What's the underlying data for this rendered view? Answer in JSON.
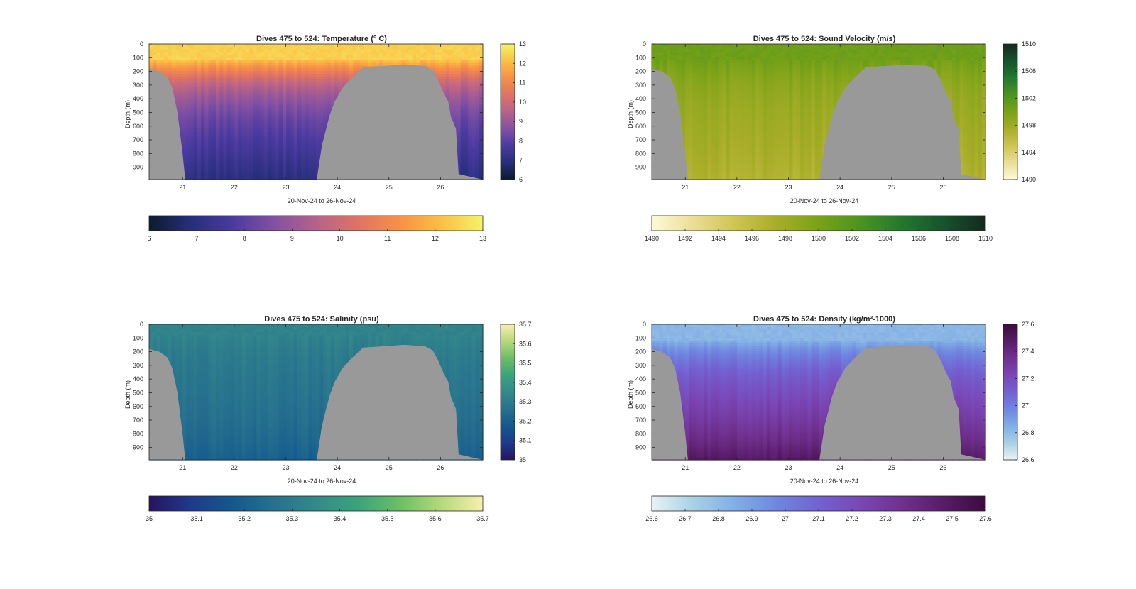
{
  "figure": {
    "shared_xlabel": "20-Nov-24 to 26-Nov-24",
    "shared_ylabel": "Depth (m)",
    "x_ticks": [
      "21",
      "22",
      "23",
      "24",
      "25",
      "26"
    ],
    "depth_ticks": [
      "0",
      "100",
      "200",
      "300",
      "400",
      "500",
      "600",
      "700",
      "800",
      "900"
    ]
  },
  "chart_data": [
    {
      "id": "temperature",
      "type": "heatmap",
      "title": "Dives 475 to 524: Temperature (° C)",
      "xlabel": "20-Nov-24 to 26-Nov-24",
      "ylabel": "Depth (m)",
      "xlim": [
        20.35,
        26.82
      ],
      "ylim": [
        0,
        990
      ],
      "x_ticks": [
        21,
        22,
        23,
        24,
        25,
        26
      ],
      "y_ticks": [
        0,
        100,
        200,
        300,
        400,
        500,
        600,
        700,
        800,
        900
      ],
      "colormap": [
        "#0c1b2e",
        "#262f7a",
        "#4a3aa0",
        "#8251a3",
        "#b5628a",
        "#de7366",
        "#f79047",
        "#fbbf45",
        "#f4f36a"
      ],
      "clim": [
        6,
        13
      ],
      "colorbar_ticks": [
        6,
        7,
        8,
        9,
        10,
        11,
        12,
        13
      ],
      "surface_value": 12.4,
      "mix_depth": 110,
      "deep_value": 7.7,
      "bottom_value": 6.9
    },
    {
      "id": "sound_velocity",
      "type": "heatmap",
      "title": "Dives 475 to 524: Sound Velocity (m/s)",
      "xlabel": "20-Nov-24 to 26-Nov-24",
      "ylabel": "Depth (m)",
      "xlim": [
        20.35,
        26.82
      ],
      "ylim": [
        0,
        990
      ],
      "x_ticks": [
        21,
        22,
        23,
        24,
        25,
        26
      ],
      "y_ticks": [
        0,
        100,
        200,
        300,
        400,
        500,
        600,
        700,
        800,
        900
      ],
      "colormap": [
        "#fdfbd8",
        "#ebdd95",
        "#cfc452",
        "#a8ad28",
        "#79a218",
        "#4b9420",
        "#23782e",
        "#17532d",
        "#132a1d"
      ],
      "clim": [
        1490,
        1510
      ],
      "colorbar_ticks": [
        1490,
        1492,
        1494,
        1496,
        1498,
        1500,
        1502,
        1504,
        1506,
        1508,
        1510
      ],
      "surface_value": 1500.6,
      "mix_depth": 110,
      "deep_value": 1497.8,
      "bottom_value": 1496.8
    },
    {
      "id": "salinity",
      "type": "heatmap",
      "title": "Dives 475 to 524: Salinity (psu)",
      "xlabel": "20-Nov-24 to 26-Nov-24",
      "ylabel": "Depth (m)",
      "xlim": [
        20.35,
        26.82
      ],
      "ylim": [
        0,
        990
      ],
      "x_ticks": [
        21,
        22,
        23,
        24,
        25,
        26
      ],
      "y_ticks": [
        0,
        100,
        200,
        300,
        400,
        500,
        600,
        700,
        800,
        900
      ],
      "colormap": [
        "#28135e",
        "#1e3a8c",
        "#14588f",
        "#27718e",
        "#33898a",
        "#3aa37c",
        "#6bbe64",
        "#b5d97c",
        "#f8efad"
      ],
      "clim": [
        35,
        35.7
      ],
      "colorbar_ticks": [
        35,
        35.1,
        35.2,
        35.3,
        35.4,
        35.5,
        35.6,
        35.7
      ],
      "surface_value": 35.33,
      "mix_depth": 80,
      "deep_value": 35.27,
      "bottom_value": 35.2
    },
    {
      "id": "density",
      "type": "heatmap",
      "title": "Dives 475 to 524: Density (kg/m³-1000)",
      "xlabel": "20-Nov-24 to 26-Nov-24",
      "ylabel": "Depth (m)",
      "xlim": [
        20.35,
        26.82
      ],
      "ylim": [
        0,
        990
      ],
      "x_ticks": [
        21,
        22,
        23,
        24,
        25,
        26
      ],
      "y_ticks": [
        0,
        100,
        200,
        300,
        400,
        500,
        600,
        700,
        800,
        900
      ],
      "colormap": [
        "#e9f3f4",
        "#a9d0e4",
        "#81aee6",
        "#6f86e0",
        "#7262d2",
        "#7a47b6",
        "#70308f",
        "#581c68",
        "#3b0c3c"
      ],
      "clim": [
        26.6,
        27.6
      ],
      "colorbar_ticks": [
        26.6,
        26.7,
        26.8,
        26.9,
        27,
        27.1,
        27.2,
        27.3,
        27.4,
        27.5,
        27.6
      ],
      "surface_value": 26.82,
      "mix_depth": 110,
      "deep_value": 27.25,
      "bottom_value": 27.5
    }
  ],
  "bathymetry": {
    "description_free": true,
    "x": [
      20.35,
      20.35,
      20.55,
      20.7,
      20.8,
      20.9,
      21.0,
      21.05,
      23.6,
      23.7,
      23.85,
      23.95,
      24.1,
      24.3,
      24.5,
      24.9,
      25.3,
      25.7,
      25.85,
      25.95,
      26.05,
      26.15,
      26.2,
      26.3,
      26.35,
      26.82,
      26.82
    ],
    "y": [
      990,
      180,
      200,
      240,
      320,
      500,
      800,
      990,
      990,
      740,
      520,
      420,
      320,
      240,
      170,
      160,
      150,
      160,
      190,
      260,
      350,
      420,
      530,
      620,
      950,
      990,
      990
    ]
  },
  "colors": {
    "land": "#999999",
    "axis": "#262626",
    "background": "#ffffff"
  }
}
